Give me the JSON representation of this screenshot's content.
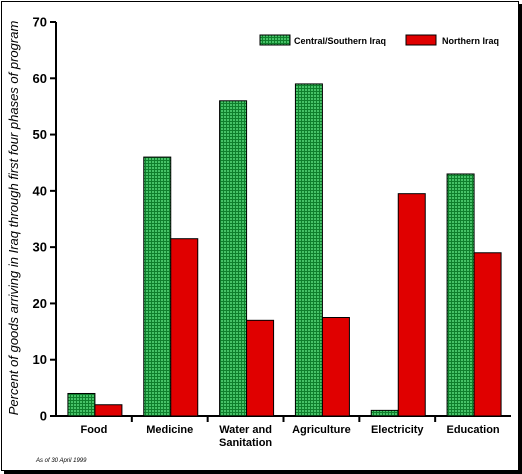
{
  "chart_data": {
    "type": "bar",
    "title": "",
    "xlabel": "",
    "ylabel": "Percent of goods arriving in Iraq through first four phases of program",
    "ylim": [
      0,
      70
    ],
    "yticks": [
      0,
      10,
      20,
      30,
      40,
      50,
      60,
      70
    ],
    "grid": false,
    "legend_position": "top-right",
    "categories": [
      [
        "Food"
      ],
      [
        "Medicine"
      ],
      [
        "Water and",
        "Sanitation"
      ],
      [
        "Agriculture"
      ],
      [
        "Electricity"
      ],
      [
        "Education"
      ]
    ],
    "series": [
      {
        "name": "Central/Southern Iraq",
        "color": "#1a9a3a",
        "pattern": "dotted",
        "values": [
          4,
          46,
          56,
          59,
          1,
          43
        ]
      },
      {
        "name": "Northern Iraq",
        "color": "#e00000",
        "pattern": "solid",
        "values": [
          2,
          31.5,
          17,
          17.5,
          39.5,
          29
        ]
      }
    ],
    "note": "As of 30 April 1999"
  }
}
